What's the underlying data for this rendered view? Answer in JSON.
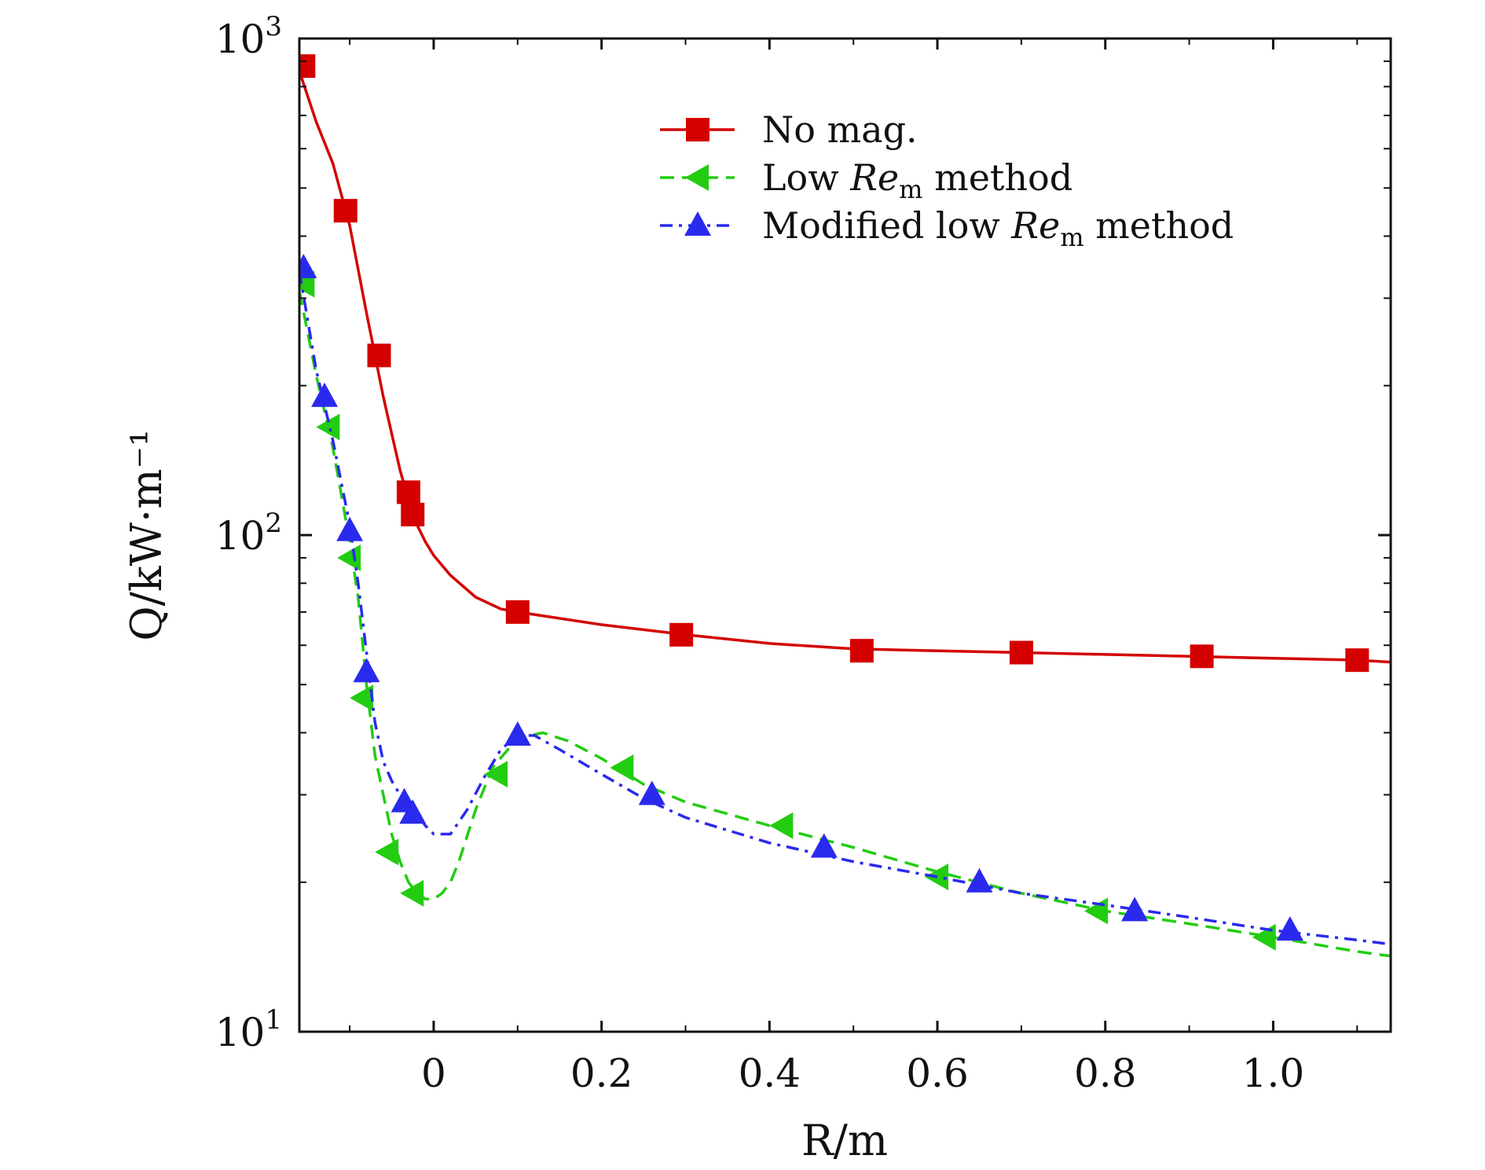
{
  "chart_data": {
    "type": "line",
    "title": "",
    "xlabel": "R/m",
    "ylabel": "Q/kW·m⁻¹",
    "xlim": [
      -0.16,
      1.14
    ],
    "ylim": [
      10,
      1000
    ],
    "yscale": "log",
    "x_ticks": [
      {
        "value": 0,
        "label": "0"
      },
      {
        "value": 0.2,
        "label": "0.2"
      },
      {
        "value": 0.4,
        "label": "0.4"
      },
      {
        "value": 0.6,
        "label": "0.6"
      },
      {
        "value": 0.8,
        "label": "0.8"
      },
      {
        "value": 1.0,
        "label": "1.0"
      }
    ],
    "y_ticks": [
      {
        "value": 10,
        "base": "10",
        "exp": "1"
      },
      {
        "value": 100,
        "base": "10",
        "exp": "2"
      },
      {
        "value": 1000,
        "base": "10",
        "exp": "3"
      }
    ],
    "legend_position": "top-right",
    "series": [
      {
        "name": "No mag.",
        "legend_parts": [
          "No mag."
        ],
        "color": "#d40000",
        "marker": "square",
        "dash": "solid",
        "curve_x": [
          -0.16,
          -0.14,
          -0.12,
          -0.1,
          -0.08,
          -0.06,
          -0.04,
          -0.03,
          -0.02,
          -0.01,
          0.0,
          0.02,
          0.05,
          0.08,
          0.1,
          0.2,
          0.3,
          0.4,
          0.5,
          0.6,
          0.7,
          0.8,
          0.9,
          1.0,
          1.1,
          1.14
        ],
        "curve_y": [
          860,
          680,
          560,
          420,
          280,
          190,
          135,
          118,
          105,
          97,
          91,
          83,
          75,
          71,
          70,
          66,
          63,
          60.5,
          59,
          58.5,
          58,
          57.5,
          57,
          56.5,
          56,
          55.5
        ],
        "marker_x": [
          -0.155,
          -0.105,
          -0.065,
          -0.03,
          -0.025,
          0.1,
          0.295,
          0.51,
          0.7,
          0.915,
          1.1
        ],
        "marker_y": [
          880,
          450,
          230,
          122,
          110,
          70,
          63,
          58.5,
          58,
          57,
          56
        ]
      },
      {
        "name": "Low Re_m method",
        "legend_parts": [
          "Low ",
          "Re",
          "m",
          " method"
        ],
        "color": "#22cc11",
        "marker": "triangle-left",
        "dash": "dashed",
        "curve_x": [
          -0.16,
          -0.14,
          -0.12,
          -0.1,
          -0.09,
          -0.08,
          -0.07,
          -0.06,
          -0.05,
          -0.04,
          -0.03,
          -0.02,
          -0.01,
          0.0,
          0.01,
          0.02,
          0.03,
          0.05,
          0.07,
          0.1,
          0.13,
          0.16,
          0.2,
          0.25,
          0.3,
          0.4,
          0.5,
          0.6,
          0.7,
          0.8,
          0.9,
          1.0,
          1.1,
          1.14
        ],
        "curve_y": [
          310,
          210,
          150,
          97,
          75,
          50,
          36,
          30,
          25,
          22,
          20,
          19,
          18.5,
          18.5,
          19,
          20,
          22,
          28,
          34,
          39,
          40,
          38.5,
          35.5,
          31.5,
          29,
          26,
          23.5,
          21,
          19,
          17.5,
          16.5,
          15.5,
          14.5,
          14.2
        ],
        "marker_x": [
          -0.155,
          -0.125,
          -0.1,
          -0.085,
          -0.055,
          -0.025,
          0.075,
          0.225,
          0.415,
          0.6,
          0.79,
          0.99
        ],
        "marker_y": [
          320,
          165,
          90,
          47,
          23,
          19,
          33,
          34,
          26,
          20.5,
          17.5,
          15.5
        ]
      },
      {
        "name": "Modified low Re_m method",
        "legend_parts": [
          "Modified low ",
          "Re",
          "m",
          " method"
        ],
        "color": "#2a2aee",
        "marker": "triangle-up",
        "dash": "dashdot",
        "curve_x": [
          -0.16,
          -0.14,
          -0.12,
          -0.1,
          -0.09,
          -0.08,
          -0.07,
          -0.06,
          -0.05,
          -0.04,
          -0.03,
          -0.02,
          -0.01,
          0.0,
          0.02,
          0.04,
          0.06,
          0.08,
          0.1,
          0.12,
          0.15,
          0.2,
          0.25,
          0.3,
          0.4,
          0.5,
          0.6,
          0.7,
          0.8,
          0.9,
          1.0,
          1.1,
          1.14
        ],
        "curve_y": [
          340,
          215,
          155,
          105,
          80,
          58,
          42,
          35,
          32,
          30,
          29,
          27.5,
          26,
          25,
          25,
          28,
          32.5,
          37,
          39.5,
          39.5,
          37,
          33,
          29.5,
          27,
          24,
          22,
          20.5,
          19,
          18,
          17,
          16,
          15.3,
          15
        ],
        "marker_x": [
          -0.155,
          -0.13,
          -0.1,
          -0.08,
          -0.035,
          -0.025,
          0.1,
          0.26,
          0.465,
          0.65,
          0.835,
          1.02
        ],
        "marker_y": [
          345,
          190,
          102,
          53,
          29,
          27.5,
          39.5,
          30,
          23.5,
          20,
          17.5,
          16
        ]
      }
    ]
  }
}
